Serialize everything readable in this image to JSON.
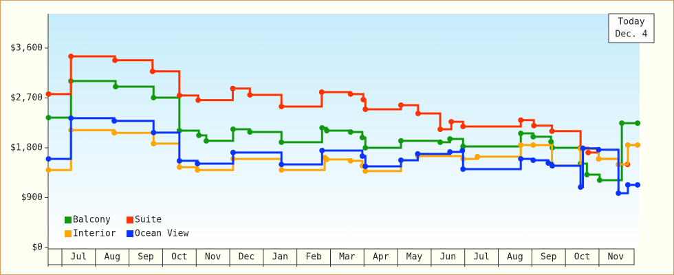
{
  "chart_data": {
    "type": "step-line",
    "annotation": [
      "Today",
      "Dec. 4"
    ],
    "categories": [
      "Jul",
      "Aug",
      "Sep",
      "Oct",
      "Nov",
      "Dec",
      "Jan",
      "Feb",
      "Mar",
      "Apr",
      "May",
      "Jun",
      "Jul",
      "Aug",
      "Sep",
      "Oct",
      "Nov"
    ],
    "xlim": [
      -0.41,
      17.21
    ],
    "ylim": [
      0,
      4220
    ],
    "yticks": [
      {
        "value": 0,
        "label": "$0"
      },
      {
        "value": 900,
        "label": "$900"
      },
      {
        "value": 1800,
        "label": "$1,800"
      },
      {
        "value": 2700,
        "label": "$2,700"
      },
      {
        "value": 3600,
        "label": "$3,600"
      }
    ],
    "grid": false,
    "legend": "bottom-left",
    "series": [
      {
        "name": "Balcony",
        "color": "#109a10",
        "x": [
          -0.4,
          0.27,
          1.6,
          2.73,
          3.5,
          4.08,
          4.3,
          5.1,
          5.6,
          6.54,
          7.75,
          7.89,
          8.6,
          8.95,
          9.04,
          10.1,
          11.27,
          11.56,
          11.95,
          13.67,
          14.04,
          14.57,
          14.61,
          15.45,
          15.64,
          16.02,
          16.68,
          17.15
        ],
        "values": [
          2345,
          3005,
          2905,
          2705,
          2110,
          2025,
          1925,
          2135,
          2085,
          1900,
          2160,
          2110,
          2085,
          1985,
          1800,
          1925,
          1900,
          1960,
          1825,
          2060,
          2000,
          1910,
          1800,
          1515,
          1315,
          1215,
          2245,
          2245
        ]
      },
      {
        "name": "Suite",
        "color": "#ff3300",
        "x": [
          -0.4,
          0.27,
          1.58,
          2.7,
          3.5,
          4.06,
          5.09,
          5.6,
          6.54,
          7.74,
          8.6,
          8.98,
          9.04,
          10.1,
          10.61,
          11.27,
          11.6,
          11.95,
          13.67,
          14.06,
          14.6,
          15.45,
          15.68,
          15.99,
          16.58,
          16.85
        ],
        "values": [
          2770,
          3450,
          3380,
          3180,
          2745,
          2660,
          2870,
          2755,
          2545,
          2805,
          2770,
          2670,
          2495,
          2570,
          2420,
          2135,
          2270,
          2185,
          2300,
          2200,
          2100,
          1800,
          1715,
          1600,
          1500,
          1500
        ]
      },
      {
        "name": "Interior",
        "color": "#ffa500",
        "x": [
          -0.4,
          0.27,
          1.56,
          2.73,
          3.5,
          4.04,
          5.1,
          6.54,
          7.83,
          7.89,
          8.6,
          8.95,
          9.04,
          10.1,
          10.6,
          11.95,
          12.38,
          13.67,
          14.04,
          14.6,
          15.45,
          15.99,
          16.58,
          16.86,
          17.15
        ],
        "values": [
          1400,
          2120,
          2070,
          1875,
          1450,
          1400,
          1600,
          1400,
          1625,
          1590,
          1565,
          1475,
          1380,
          1575,
          1650,
          1600,
          1640,
          1850,
          1850,
          1480,
          1780,
          1600,
          1500,
          1850,
          1850
        ]
      },
      {
        "name": "Ocean View",
        "color": "#0a33ff",
        "x": [
          -0.4,
          0.27,
          1.56,
          2.73,
          3.5,
          4.04,
          5.1,
          6.54,
          7.75,
          8.95,
          9.04,
          10.1,
          10.6,
          11.56,
          11.93,
          11.95,
          13.67,
          14.04,
          14.49,
          14.61,
          15.45,
          15.52,
          15.99,
          16.58,
          16.86,
          17.15
        ],
        "values": [
          1600,
          2335,
          2285,
          2075,
          1565,
          1515,
          1715,
          1500,
          1750,
          1650,
          1465,
          1575,
          1690,
          1725,
          1750,
          1415,
          1600,
          1575,
          1525,
          1475,
          1090,
          1790,
          1765,
          980,
          1130,
          1130
        ]
      }
    ]
  }
}
